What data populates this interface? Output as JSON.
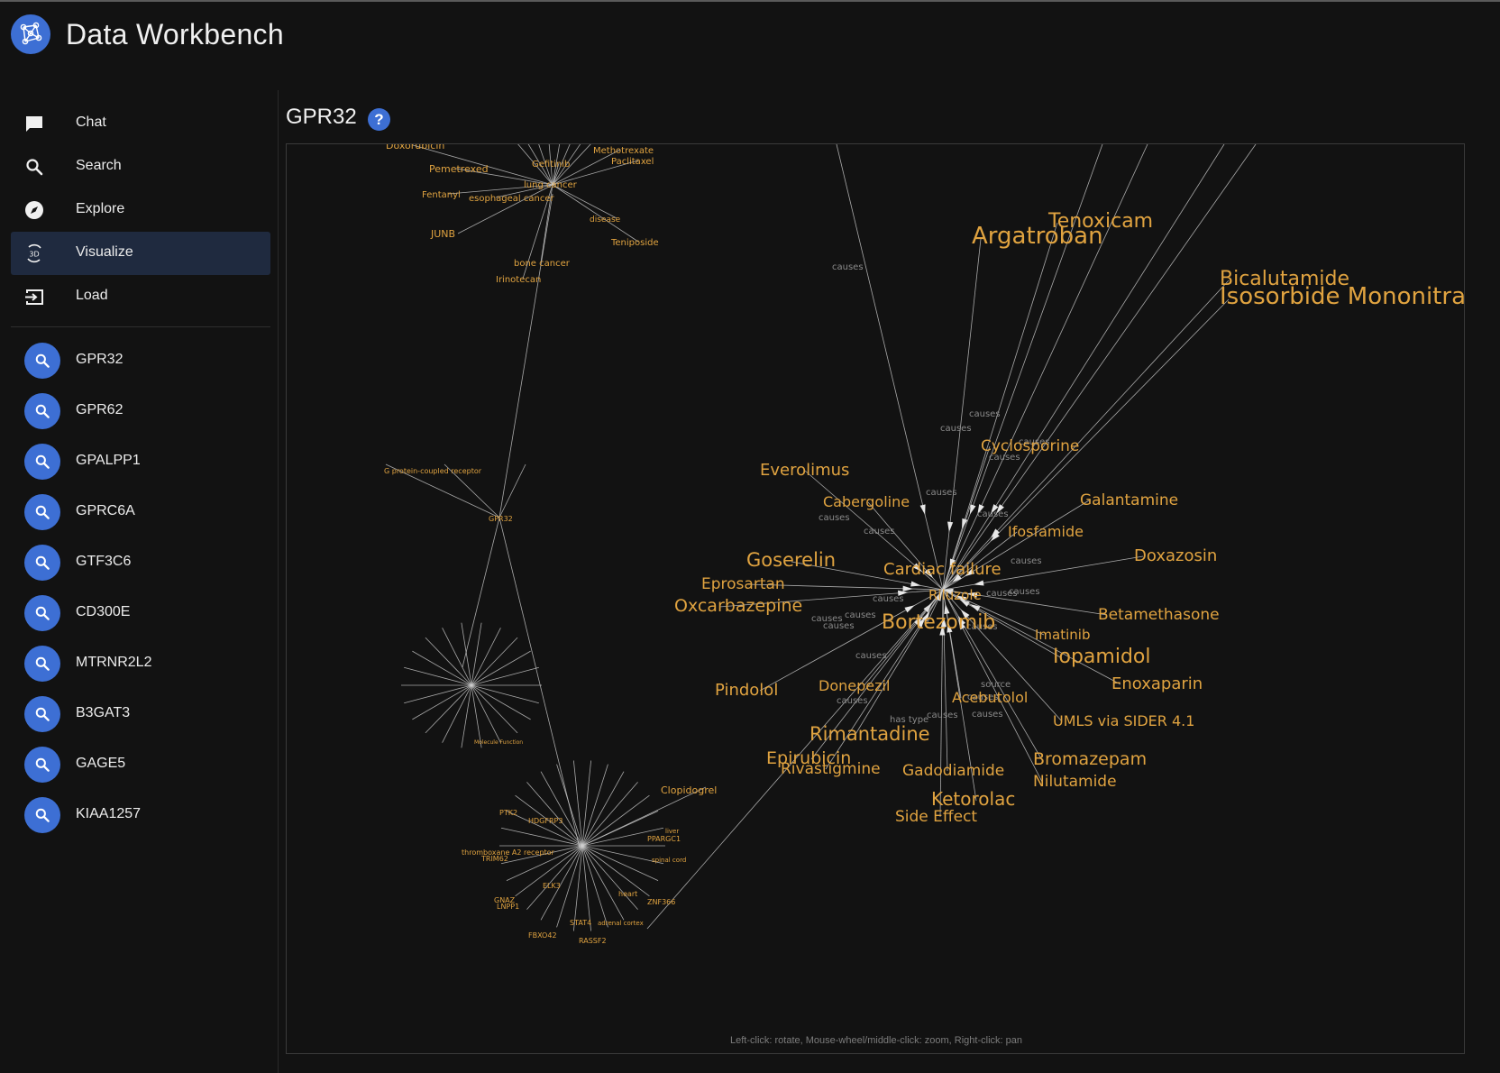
{
  "app": {
    "title": "Data Workbench",
    "logo_icon": "network-graph-icon"
  },
  "nav": [
    {
      "label": "Chat",
      "icon": "chat-icon",
      "active": false
    },
    {
      "label": "Search",
      "icon": "search-icon",
      "active": false
    },
    {
      "label": "Explore",
      "icon": "compass-icon",
      "active": false
    },
    {
      "label": "Visualize",
      "icon": "3d-rotate-icon",
      "active": true
    },
    {
      "label": "Load",
      "icon": "load-icon",
      "active": false
    }
  ],
  "genes": [
    "GPR32",
    "GPR62",
    "GPALPP1",
    "GPRC6A",
    "GTF3C6",
    "CD300E",
    "MTRNR2L2",
    "B3GAT3",
    "GAGE5",
    "KIAA1257"
  ],
  "panel": {
    "title": "GPR32",
    "help_icon": "help-icon",
    "help_glyph": "?",
    "hint": "Left-click: rotate, Mouse-wheel/middle-click: zoom, Right-click: pan"
  },
  "colors": {
    "accent": "#3d6fd4",
    "background": "#121212",
    "node_label": "#e0a340",
    "edge": "#cfcfcf",
    "active_nav": "#1f2a3f"
  },
  "graph": {
    "large_nodes": [
      "Tenoxicam",
      "Argatroban",
      "Bicalutamide",
      "Isosorbide Mononitrate",
      "Cyclosporine",
      "Everolimus",
      "Cabergoline",
      "Galantamine",
      "Ifosfamide",
      "Goserelin",
      "Cardiac failure",
      "Doxazosin",
      "Eprosartan",
      "Oxcarbazepine",
      "Riluzole",
      "Betamethasone",
      "Bortezomib",
      "Imatinib",
      "Iopamidol",
      "Enoxaparin",
      "Pindolol",
      "Donepezil",
      "Acebutolol",
      "UMLS via SIDER 4.1",
      "Rimantadine",
      "Epirubicin",
      "Rivastigmine",
      "Gadodiamide",
      "Bromazepam",
      "Nilutamide",
      "Ketorolac",
      "Side Effect"
    ],
    "small_nodes": [
      "Doxorubicin",
      "Methotrexate",
      "Paclitaxel",
      "Gefitinib",
      "Pemetrexed",
      "lung cancer",
      "Fentanyl",
      "esophageal cancer",
      "disease",
      "JUNB",
      "Teniposide",
      "bone cancer",
      "Irinotecan",
      "G protein-coupled receptor",
      "GPR32",
      "Clopidogrel",
      "PTK2",
      "HDGFRP3",
      "thromboxane A2 receptor",
      "TRIM62",
      "ELK3",
      "GNAZ",
      "LNPP1",
      "STAT4",
      "adrenal cortex",
      "FBXO42",
      "RASSF2",
      "ZNF366",
      "heart",
      "spinal cord",
      "PPARGC1",
      "liver",
      "Molecule Function"
    ],
    "edge_labels": [
      "causes",
      "has type",
      "source"
    ]
  }
}
